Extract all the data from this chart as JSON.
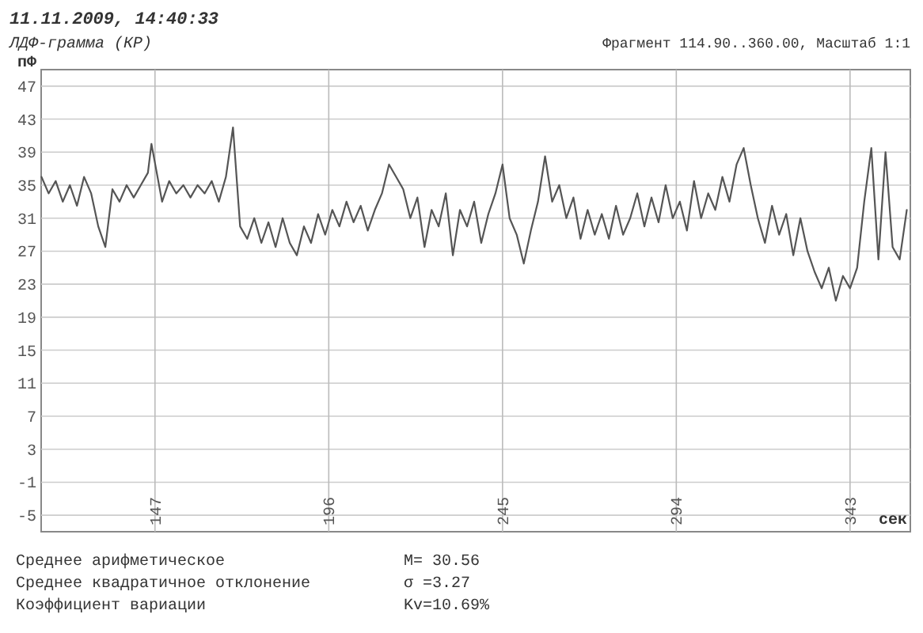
{
  "chart_data": {
    "type": "line",
    "subtitle": "11.11.2009, 14:40:33",
    "title": "ЛДФ-грамма (КР)",
    "ylabel": "пФ",
    "xlabel": "сек",
    "annotations": [
      "Фрагмент 114.90..360.00, Масштаб 1:1",
      "Среднее арифметическое",
      "M= 30.56",
      "Среднее квадратичное отклонение",
      "σ =3.27",
      "Коэффициент вариации",
      "Kv=10.69%"
    ],
    "x": [
      115,
      117,
      119,
      121,
      123,
      125,
      127,
      129,
      131,
      133,
      135,
      137,
      139,
      141,
      143,
      145,
      146,
      149,
      151,
      153,
      155,
      157,
      159,
      161,
      163,
      165,
      167,
      169,
      171,
      173,
      175,
      177,
      179,
      181,
      183,
      185,
      187,
      189,
      191,
      193,
      195,
      197,
      199,
      201,
      203,
      205,
      207,
      209,
      211,
      213,
      215,
      217,
      219,
      221,
      223,
      225,
      227,
      229,
      231,
      233,
      235,
      237,
      239,
      241,
      243,
      245,
      247,
      249,
      251,
      253,
      255,
      257,
      259,
      261,
      263,
      265,
      267,
      269,
      271,
      273,
      275,
      277,
      279,
      281,
      283,
      285,
      287,
      289,
      291,
      293,
      295,
      297,
      299,
      301,
      303,
      305,
      307,
      309,
      311,
      313,
      315,
      317,
      319,
      321,
      323,
      325,
      327,
      329,
      331,
      333,
      335,
      337,
      339,
      341,
      343,
      345,
      347,
      349,
      351,
      353,
      355,
      357,
      359
    ],
    "series": [
      {
        "color": "#555555",
        "values": [
          36,
          34,
          35.5,
          33,
          35,
          32.5,
          36,
          34,
          30,
          27.5,
          34.5,
          33,
          35,
          33.5,
          35,
          36.5,
          40,
          33,
          35.5,
          34,
          35,
          33.5,
          35,
          34,
          35.5,
          33,
          36,
          42,
          30,
          28.5,
          31,
          28,
          30.5,
          27.5,
          31,
          28,
          26.5,
          30,
          28,
          31.5,
          29,
          32,
          30,
          33,
          30.5,
          32.5,
          29.5,
          32,
          34,
          37.5,
          36,
          34.5,
          31,
          33.5,
          27.5,
          32,
          30,
          34,
          26.5,
          32,
          30,
          33,
          28,
          31.5,
          34,
          37.5,
          31,
          29,
          25.5,
          29.5,
          33,
          38.5,
          33,
          35,
          31,
          33.5,
          28.5,
          32,
          29,
          31.5,
          28.5,
          32.5,
          29,
          31,
          34,
          30,
          33.5,
          30.5,
          35,
          31,
          33,
          29.5,
          35.5,
          31,
          34,
          32,
          36,
          33,
          37.5,
          39.5,
          35,
          31,
          28,
          32.5,
          29,
          31.5,
          26.5,
          31,
          27,
          24.5,
          22.5,
          25,
          21,
          24,
          22.5,
          25,
          33,
          39.5,
          26,
          39,
          27.5,
          26,
          32
        ]
      }
    ],
    "xlim": [
      114.9,
      360
    ],
    "xticks": [
      147,
      196,
      245,
      294,
      343
    ],
    "ylim": [
      -7,
      49
    ],
    "yticks": [
      47,
      43,
      39,
      35,
      31,
      27,
      23,
      19,
      15,
      11,
      7,
      3,
      -1,
      -5
    ],
    "grid": true
  }
}
